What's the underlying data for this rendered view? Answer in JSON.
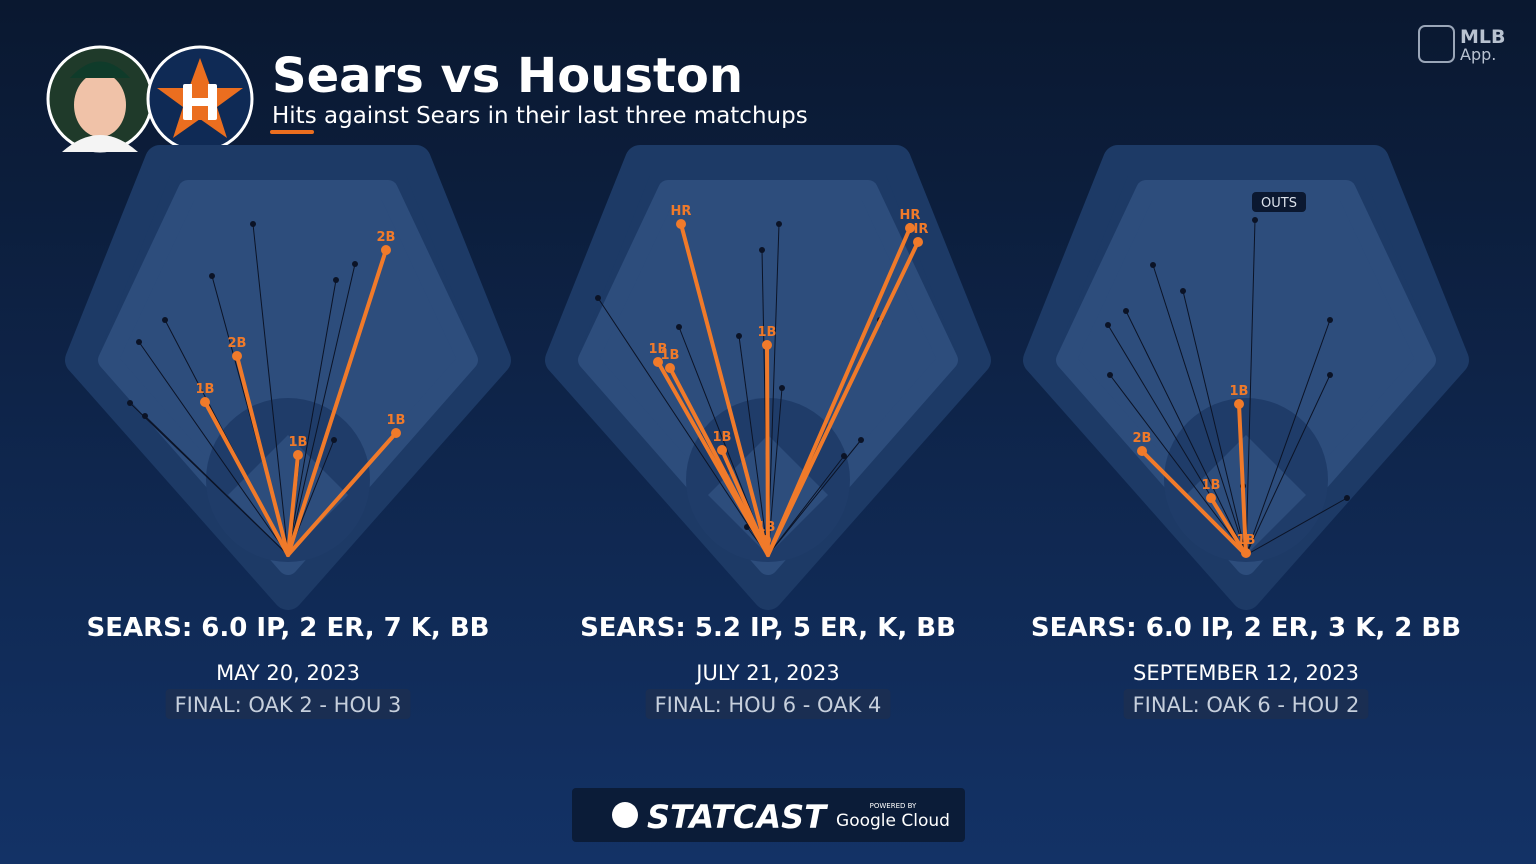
{
  "header": {
    "title": "Sears vs Houston",
    "subtitle": "Hits against Sears in their last three matchups"
  },
  "logo": {
    "name": "MLB",
    "sub": "App."
  },
  "panels": [
    {
      "stat_line": "SEARS: 6.0 IP, 2 ER, 7 K, BB",
      "date": "MAY 20, 2023",
      "final": "FINAL: OAK 2 - HOU 3",
      "hits": [
        "2B",
        "2B",
        "1B",
        "1B",
        "1B"
      ]
    },
    {
      "stat_line": "SEARS: 5.2 IP, 5 ER, K, BB",
      "date": "JULY 21, 2023",
      "final": "FINAL: HOU 6 - OAK 4",
      "hits": [
        "HR",
        "HR",
        "HR",
        "1B",
        "1B",
        "1B",
        "1B",
        "1B"
      ]
    },
    {
      "stat_line": "SEARS: 6.0 IP, 2 ER, 3 K, 2 BB",
      "date": "SEPTEMBER 12, 2023",
      "final": "FINAL: OAK 6 - HOU 2",
      "hits": [
        "1B",
        "2B",
        "1B",
        "1B"
      ],
      "outs_label": "OUTS"
    }
  ],
  "footer": {
    "brand": "STATCAST",
    "powered_by": "POWERED BY",
    "partner": "Google Cloud"
  }
}
